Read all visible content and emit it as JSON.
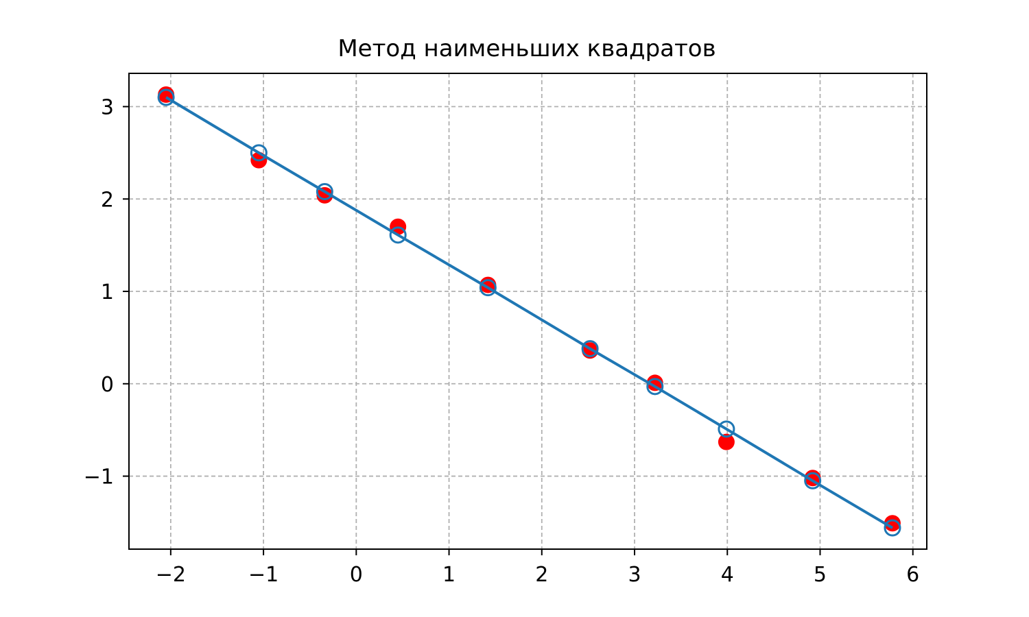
{
  "chart_data": {
    "type": "scatter",
    "title": "Метод наименьших квадратов",
    "xlabel": "",
    "ylabel": "",
    "xlim": [
      -2.45,
      6.15
    ],
    "ylim": [
      -1.79,
      3.36
    ],
    "x_ticks": [
      -2,
      -1,
      0,
      1,
      2,
      3,
      4,
      5,
      6
    ],
    "x_tick_labels": [
      "−2",
      "−1",
      "0",
      "1",
      "2",
      "3",
      "4",
      "5",
      "6"
    ],
    "y_ticks": [
      -1,
      0,
      1,
      2,
      3
    ],
    "y_tick_labels": [
      "−1",
      "0",
      "1",
      "2",
      "3"
    ],
    "grid": true,
    "legend": "none",
    "colors": {
      "measured": "#ff0000",
      "fit": "#1f77b4",
      "grid": "#b0b0b0"
    },
    "series": [
      {
        "style": "filled red markers",
        "x": [
          -2.05,
          -1.05,
          -0.34,
          0.45,
          1.42,
          2.52,
          3.22,
          3.99,
          4.92,
          5.78
        ],
        "y": [
          3.13,
          2.42,
          2.04,
          1.7,
          1.07,
          0.36,
          0.01,
          -0.63,
          -1.02,
          -1.51
        ]
      },
      {
        "style": "hollow blue markers with line",
        "x": [
          -2.05,
          -1.05,
          -0.34,
          0.45,
          1.42,
          2.52,
          3.22,
          3.99,
          4.92,
          5.78
        ],
        "y": [
          3.1,
          2.5,
          2.08,
          1.61,
          1.04,
          0.38,
          -0.03,
          -0.49,
          -1.05,
          -1.56
        ]
      }
    ]
  }
}
